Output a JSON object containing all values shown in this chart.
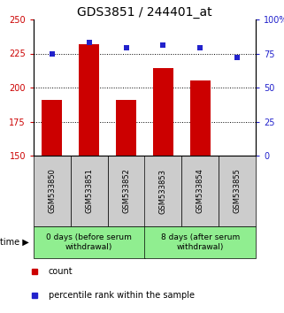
{
  "title": "GDS3851 / 244401_at",
  "samples": [
    "GSM533850",
    "GSM533851",
    "GSM533852",
    "GSM533853",
    "GSM533854",
    "GSM533855"
  ],
  "bar_values": [
    191,
    232,
    191,
    214,
    205,
    150
  ],
  "percentile_values": [
    75,
    83,
    79,
    81,
    79,
    72
  ],
  "bar_color": "#cc0000",
  "percentile_color": "#2222cc",
  "bar_bottom": 150,
  "ylim_left": [
    150,
    250
  ],
  "ylim_right": [
    0,
    100
  ],
  "yticks_left": [
    150,
    175,
    200,
    225,
    250
  ],
  "yticks_right": [
    0,
    25,
    50,
    75,
    100
  ],
  "ytick_labels_left": [
    "150",
    "175",
    "200",
    "225",
    "250"
  ],
  "ytick_labels_right": [
    "0",
    "25",
    "50",
    "75",
    "100%"
  ],
  "grid_values": [
    175,
    200,
    225
  ],
  "group1_label": "0 days (before serum\nwithdrawal)",
  "group2_label": "8 days (after serum\nwithdrawal)",
  "group1_indices": [
    0,
    1,
    2
  ],
  "group2_indices": [
    3,
    4,
    5
  ],
  "group_bg_color": "#90EE90",
  "sample_bg_color": "#cccccc",
  "legend_count_label": "count",
  "legend_percentile_label": "percentile rank within the sample",
  "title_fontsize": 10,
  "tick_fontsize": 7,
  "sample_fontsize": 6,
  "group_fontsize": 6.5,
  "legend_fontsize": 7
}
